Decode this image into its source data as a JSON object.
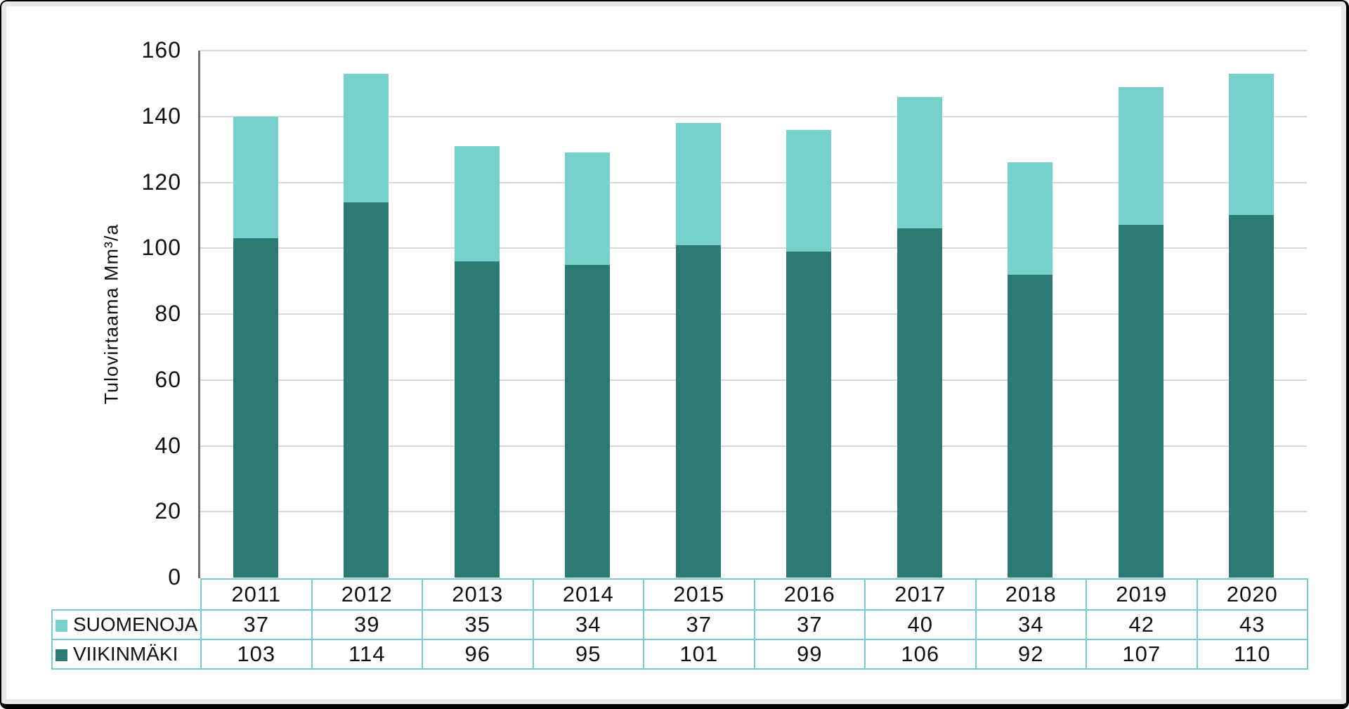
{
  "palette": {
    "suomenoja_color": "#76D1CC",
    "viikinmaki_color": "#2B7A73",
    "table_border": "#76CAD3",
    "gridline": "#D9D9D9",
    "axis_line": "#6F6F6F",
    "text": "#111111",
    "background": "#FFFFFF",
    "frame_border": "#000000",
    "frame_mat": "#E8E8E8"
  },
  "chart_data": {
    "type": "bar",
    "stacked": true,
    "title": "",
    "xlabel": "",
    "ylabel": "Tulovirtaama Mm³/a",
    "categories": [
      "2011",
      "2012",
      "2013",
      "2014",
      "2015",
      "2016",
      "2017",
      "2018",
      "2019",
      "2020"
    ],
    "series": [
      {
        "name": "SUOMENOJA",
        "color": "#76D1CC",
        "values": [
          37,
          39,
          35,
          34,
          37,
          37,
          40,
          34,
          42,
          43
        ]
      },
      {
        "name": "VIIKINMÄKI",
        "color": "#2B7A73",
        "values": [
          103,
          114,
          96,
          95,
          101,
          99,
          106,
          92,
          107,
          110
        ]
      }
    ],
    "stack_order_bottom_to_top": [
      "VIIKINMÄKI",
      "SUOMENOJA"
    ],
    "ylim": [
      0,
      160
    ],
    "yticks": [
      0,
      20,
      40,
      60,
      80,
      100,
      120,
      140,
      160
    ],
    "grid": true,
    "legend_position": "data-table-left",
    "data_table": true
  }
}
